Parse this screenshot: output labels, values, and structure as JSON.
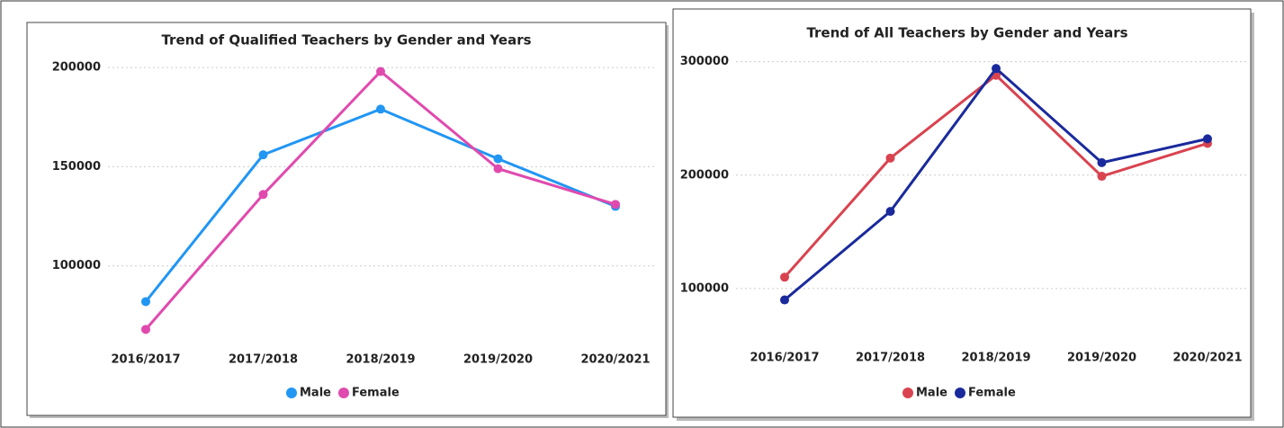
{
  "chart_data": [
    {
      "type": "line",
      "title": "Trend of Qualified Teachers by Gender and Years",
      "categories": [
        "2016/2017",
        "2017/2018",
        "2018/2019",
        "2019/2020",
        "2020/2021"
      ],
      "series": [
        {
          "name": "Male",
          "color": "#2196f3",
          "values": [
            82000,
            156000,
            179000,
            154000,
            130000
          ]
        },
        {
          "name": "Female",
          "color": "#e04aae",
          "values": [
            68000,
            136000,
            198000,
            149000,
            131000
          ]
        }
      ],
      "ylim": [
        60000,
        210000
      ],
      "yticks": [
        100000,
        150000,
        200000
      ],
      "grid": true,
      "legend": "bottom"
    },
    {
      "type": "line",
      "title": "Trend of All Teachers by Gender and Years",
      "categories": [
        "2016/2017",
        "2017/2018",
        "2018/2019",
        "2019/2020",
        "2020/2021"
      ],
      "series": [
        {
          "name": "Male",
          "color": "#d9434f",
          "values": [
            110000,
            215000,
            288000,
            199000,
            228000
          ]
        },
        {
          "name": "Female",
          "color": "#1a2a9c",
          "values": [
            90000,
            168000,
            294000,
            211000,
            232000
          ]
        }
      ],
      "ylim": [
        50000,
        310000
      ],
      "yticks": [
        100000,
        200000,
        300000
      ],
      "grid": true,
      "legend": "bottom"
    }
  ]
}
